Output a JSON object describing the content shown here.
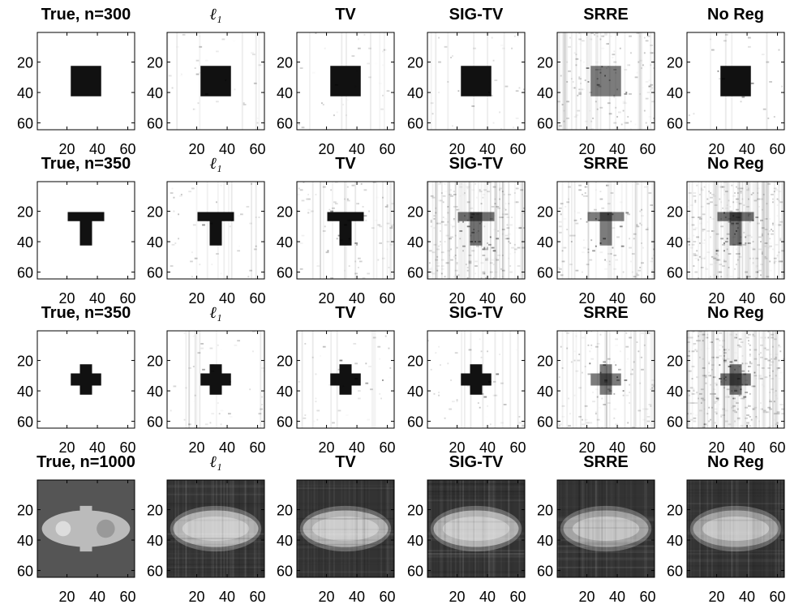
{
  "rows": [
    {
      "titles": [
        "True, n=300",
        "ℓ₁",
        "TV",
        "SIG-TV",
        "SRRE",
        "No Reg"
      ]
    },
    {
      "titles": [
        "True, n=350",
        "ℓ₁",
        "TV",
        "SIG-TV",
        "SRRE",
        "No Reg"
      ]
    },
    {
      "titles": [
        "True, n=350",
        "ℓ₁",
        "TV",
        "SIG-TV",
        "SRRE",
        "No Reg"
      ]
    },
    {
      "titles": [
        "True, n=1000",
        "ℓ₁",
        "TV",
        "SIG-TV",
        "SRRE",
        "No Reg"
      ]
    }
  ],
  "xlim": [
    0.5,
    64.5
  ],
  "ylim": [
    0.5,
    64.5
  ],
  "xticks": [
    20,
    40,
    60
  ],
  "yticks": [
    20,
    40,
    60
  ]
}
